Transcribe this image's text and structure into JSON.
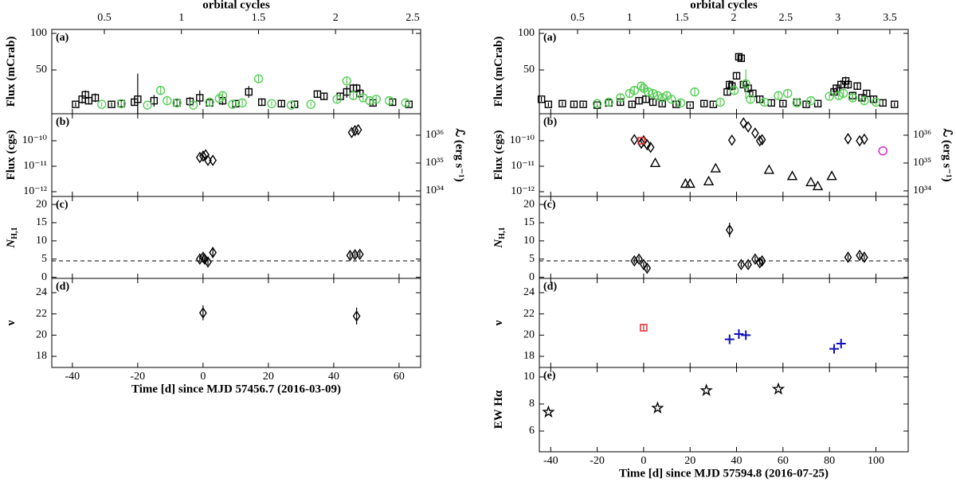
{
  "chart_data": [
    {
      "type": "scatter",
      "top_axis_label": "orbital cycles",
      "top_xlim": [
        0.159,
        2.552
      ],
      "top_xticks": [
        0.5,
        1,
        1.5,
        2,
        2.5
      ],
      "xlabel": "Time [d] since MJD 57456.7 (2016-03-09)",
      "xlim": [
        -46.3,
        66.6
      ],
      "xticks": [
        -40,
        -20,
        0,
        20,
        40,
        60
      ],
      "panels": [
        {
          "label": "(a)",
          "ylabel": "Flux (mCrab)",
          "ylim": [
            -9.8,
            105.4
          ],
          "yticks": [
            50,
            100
          ],
          "series": [
            {
              "color": "#000000",
              "marker": "square",
              "x": [
                -39,
                -37,
                -36,
                -35,
                -33,
                -28,
                -25,
                -21,
                -20,
                -15,
                -8,
                -4,
                -1,
                2,
                6,
                10,
                14,
                18,
                24,
                28,
                35,
                37,
                42,
                44,
                46,
                47,
                48,
                52,
                58,
                63
              ],
              "values": [
                3,
                10,
                16,
                8,
                12,
                3,
                4,
                6,
                10,
                8,
                5,
                7,
                12,
                5,
                8,
                4,
                20,
                6,
                4,
                3,
                17,
                14,
                14,
                20,
                25,
                25,
                18,
                5,
                6,
                3
              ],
              "errors": [
                3,
                6,
                6,
                5,
                6,
                3,
                4,
                5,
                35,
                8,
                5,
                6,
                10,
                5,
                6,
                4,
                8,
                5,
                4,
                3,
                5,
                5,
                5,
                8,
                6,
                6,
                6,
                4,
                5,
                3
              ]
            },
            {
              "color": "#55cc55",
              "marker": "circle",
              "x": [
                -31,
                -25,
                -17,
                -13,
                -11,
                -8,
                -3,
                2,
                5,
                6,
                9,
                12,
                17,
                21,
                27,
                33,
                41,
                44,
                46,
                49,
                51,
                53,
                57,
                62
              ],
              "values": [
                3,
                4,
                2,
                22,
                8,
                5,
                2,
                6,
                11,
                15,
                3,
                5,
                38,
                4,
                2,
                3,
                10,
                35,
                15,
                12,
                8,
                10,
                8,
                5
              ],
              "errors": [
                3,
                3,
                2,
                5,
                4,
                3,
                2,
                4,
                5,
                6,
                3,
                4,
                5,
                3,
                2,
                3,
                5,
                6,
                5,
                5,
                4,
                4,
                4,
                3
              ]
            }
          ]
        },
        {
          "label": "(b)",
          "ylabel": "Flux (cgs)",
          "log": true,
          "ylim": [
            6.5e-13,
            1.15e-09
          ],
          "yticks": [
            {
              "value": 1e-12,
              "label": "10⁻¹²"
            },
            {
              "value": 1e-11,
              "label": "10⁻¹¹"
            },
            {
              "value": 1e-10,
              "label": "10⁻¹⁰"
            }
          ],
          "y2label": "ℒ (erg s⁻¹)",
          "y2lim": [
            6.3e+33,
            5.9e+36
          ],
          "y2ticks": [
            {
              "value": 1e+34,
              "label": "10³⁴"
            },
            {
              "value": 1e+35,
              "label": "10³⁵"
            },
            {
              "value": 1e+36,
              "label": "10³⁶"
            }
          ],
          "series": [
            {
              "color": "#000000",
              "marker": "diamond",
              "x": [
                -1,
                0,
                0.8,
                1.5,
                3,
                45.5,
                46.5,
                47.5
              ],
              "values": [
                2.2e-11,
                2.5e-11,
                2.8e-11,
                1.7e-11,
                1.7e-11,
                2.1e-10,
                2.5e-10,
                2.7e-10
              ]
            }
          ]
        },
        {
          "label": "(c)",
          "ylabel": "N",
          "ylabel_sub": "H,1",
          "ylim": [
            -0.3,
            22.2
          ],
          "yticks": [
            0,
            5,
            10,
            15,
            20
          ],
          "hline": 4.5,
          "series": [
            {
              "color": "#000000",
              "marker": "diamond",
              "x": [
                -1,
                0,
                0.5,
                1.5,
                3,
                45,
                46.5,
                48
              ],
              "values": [
                5,
                5.5,
                5,
                4.2,
                6.8,
                6,
                6.2,
                6.3
              ],
              "errors": [
                0.8,
                0.8,
                0.8,
                0.8,
                1.5,
                0.8,
                0.8,
                0.8
              ]
            }
          ]
        },
        {
          "label": "(d)",
          "ylabel": "ν",
          "ylim": [
            16.95,
            25.35
          ],
          "yticks": [
            18,
            20,
            22,
            24
          ],
          "series": [
            {
              "color": "#000000",
              "marker": "diamond",
              "x": [
                0,
                47
              ],
              "values": [
                22.1,
                21.8
              ],
              "errors": [
                0.7,
                0.8
              ]
            }
          ]
        }
      ]
    },
    {
      "type": "scatter",
      "top_axis_label": "orbital cycles",
      "top_xlim": [
        0.133,
        3.676
      ],
      "top_xticks": [
        0.5,
        1,
        1.5,
        2,
        2.5,
        3,
        3.5
      ],
      "xlabel": "Time [d] since MJD 57594.8 (2016-07-25)",
      "xlim": [
        -44.9,
        113.9
      ],
      "xticks": [
        -40,
        -20,
        0,
        20,
        40,
        60,
        80,
        100
      ],
      "panels": [
        {
          "label": "(a)",
          "ylabel": "Flux (mCrab)",
          "ylim": [
            -9.8,
            105.4
          ],
          "yticks": [
            50,
            100
          ],
          "series": [
            {
              "color": "#000000",
              "marker": "square",
              "x": [
                -44,
                -41,
                -35,
                -30,
                -26,
                -20,
                -15,
                -10,
                -5,
                -2,
                1,
                4,
                8,
                14,
                20,
                26,
                30,
                36,
                37,
                38,
                40,
                41,
                42,
                43,
                45,
                47,
                50,
                55,
                60,
                66,
                70,
                75,
                82,
                83,
                85,
                87,
                88,
                90,
                92,
                94,
                96,
                99,
                103,
                108
              ],
              "values": [
                10,
                3,
                4,
                3,
                3,
                2,
                5,
                6,
                3,
                8,
                10,
                6,
                4,
                3,
                2,
                4,
                3,
                20,
                30,
                28,
                42,
                68,
                66,
                30,
                25,
                18,
                10,
                5,
                4,
                6,
                3,
                4,
                20,
                25,
                30,
                35,
                30,
                15,
                28,
                12,
                18,
                10,
                5,
                3
              ],
              "errors": [
                3,
                3,
                3,
                3,
                3,
                2,
                4,
                4,
                3,
                5,
                5,
                4,
                3,
                3,
                2,
                3,
                3,
                5,
                6,
                6,
                5,
                5,
                5,
                5,
                6,
                5,
                5,
                4,
                3,
                4,
                3,
                3,
                5,
                5,
                6,
                6,
                6,
                5,
                5,
                5,
                5,
                5,
                4,
                3
              ]
            },
            {
              "color": "#55cc55",
              "marker": "circle",
              "x": [
                -20,
                -15,
                -10,
                -6,
                -4,
                -1,
                0,
                2,
                4,
                6,
                8,
                10,
                12,
                16,
                22,
                33,
                39,
                44,
                46,
                52,
                58,
                62,
                66,
                72,
                80,
                84,
                86,
                90,
                95,
                100
              ],
              "values": [
                4,
                6,
                12,
                18,
                22,
                28,
                25,
                20,
                18,
                15,
                12,
                15,
                10,
                5,
                20,
                6,
                22,
                31,
                10,
                6,
                15,
                18,
                5,
                8,
                14,
                15,
                18,
                12,
                8,
                6
              ],
              "errors": [
                3,
                4,
                5,
                5,
                6,
                6,
                5,
                5,
                5,
                5,
                5,
                5,
                4,
                4,
                5,
                4,
                5,
                20,
                5,
                4,
                5,
                5,
                4,
                4,
                4,
                5,
                5,
                5,
                4,
                4
              ]
            }
          ]
        },
        {
          "label": "(b)",
          "ylabel": "Flux (cgs)",
          "log": true,
          "ylim": [
            6.5e-13,
            1.15e-09
          ],
          "yticks": [
            {
              "value": 1e-12,
              "label": "10⁻¹²"
            },
            {
              "value": 1e-11,
              "label": "10⁻¹¹"
            },
            {
              "value": 1e-10,
              "label": "10⁻¹⁰"
            }
          ],
          "y2label": "ℒ (erg s⁻¹)",
          "y2lim": [
            6.3e+33,
            5.9e+36
          ],
          "y2ticks": [
            {
              "value": 1e+34,
              "label": "10³⁴"
            },
            {
              "value": 1e+35,
              "label": "10³⁵"
            },
            {
              "value": 1e+36,
              "label": "10³⁶"
            }
          ],
          "series": [
            {
              "color": "#000000",
              "marker": "diamond",
              "x": [
                -4,
                -1,
                0,
                1.5,
                3,
                38,
                43,
                45,
                48,
                50,
                51,
                88,
                93,
                95
              ],
              "values": [
                1.1e-10,
                8e-11,
                1e-10,
                7e-11,
                5.5e-11,
                1.05e-10,
                5e-10,
                3.5e-10,
                2e-10,
                1e-10,
                1.1e-10,
                1.2e-10,
                1e-10,
                1.15e-10
              ]
            },
            {
              "color": "#000000",
              "marker": "triangle",
              "x": [
                5,
                18,
                20,
                28,
                31,
                54,
                64,
                72,
                75,
                81
              ],
              "values": [
                1.3e-11,
                2e-12,
                2e-12,
                2.5e-12,
                8e-12,
                7e-12,
                4e-12,
                2.3e-12,
                1.6e-12,
                4e-12
              ]
            },
            {
              "color": "#e02020",
              "marker": "square",
              "x": [
                -1
              ],
              "values": [
                1e-10
              ]
            },
            {
              "color": "#d020d0",
              "marker": "circle",
              "x": [
                103
              ],
              "values": [
                4e-11
              ]
            }
          ]
        },
        {
          "label": "(c)",
          "ylabel": "N",
          "ylabel_sub": "H,1",
          "ylim": [
            -0.3,
            22.2
          ],
          "yticks": [
            0,
            5,
            10,
            15,
            20
          ],
          "hline": 4.5,
          "series": [
            {
              "color": "#000000",
              "marker": "diamond",
              "x": [
                -4,
                -2,
                0,
                1.5,
                37,
                42,
                45,
                48,
                50,
                51,
                88,
                93,
                95
              ],
              "values": [
                4.5,
                5,
                3.5,
                2.5,
                13,
                3.5,
                3.5,
                5,
                4,
                4.5,
                5.5,
                6,
                5.5
              ],
              "errors": [
                0.7,
                0.7,
                0.7,
                0.7,
                2,
                0.7,
                0.7,
                0.7,
                0.7,
                0.7,
                0.7,
                0.7,
                0.7
              ]
            }
          ]
        },
        {
          "label": "(d)",
          "ylabel": "ν",
          "ylim": [
            16.95,
            25.35
          ],
          "yticks": [
            18,
            20,
            22,
            24
          ],
          "series": [
            {
              "color": "#e02020",
              "marker": "square",
              "x": [
                0
              ],
              "values": [
                20.7
              ],
              "errors": [
                0.3
              ]
            },
            {
              "color": "#1010c0",
              "marker": "plus",
              "x": [
                37,
                41,
                44,
                82,
                85
              ],
              "values": [
                19.6,
                20.1,
                20,
                18.7,
                19.2
              ],
              "errors": [
                0.3,
                0.3,
                0.3,
                0.3,
                0.3
              ]
            }
          ]
        },
        {
          "label": "(e)",
          "ylabel": "EW Hα",
          "ylim": [
            4.47,
            10.7
          ],
          "yticks": [
            6,
            8,
            10
          ],
          "series": [
            {
              "color": "#000000",
              "marker": "star",
              "x": [
                -41,
                6,
                27,
                58
              ],
              "values": [
                7.4,
                7.7,
                9,
                9.1
              ]
            }
          ]
        }
      ]
    }
  ]
}
